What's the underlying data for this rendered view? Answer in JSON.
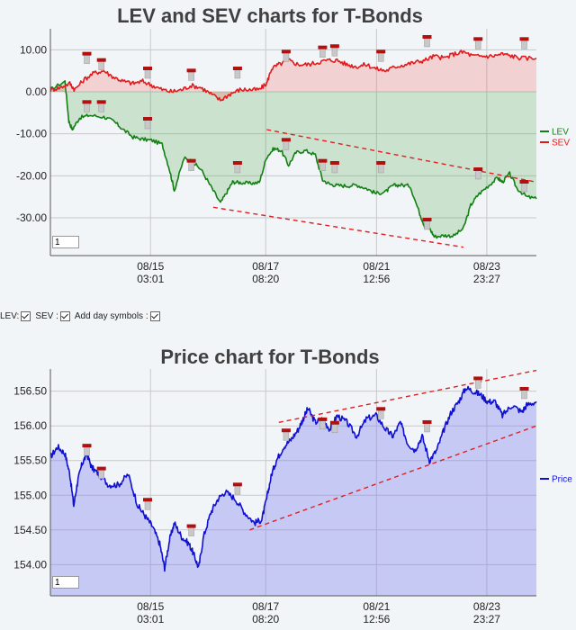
{
  "charts": {
    "lev": {
      "title": "LEV and SEV charts for T-Bonds",
      "legend": [
        {
          "name": "LEV",
          "color": "#138013"
        },
        {
          "name": "SEV",
          "color": "#e31a1c"
        }
      ],
      "zoom_value": "1"
    },
    "price": {
      "title": "Price chart for T-Bonds",
      "legend": [
        {
          "name": "Price",
          "color": "#1010d0"
        }
      ],
      "zoom_value": "1"
    }
  },
  "controls": {
    "lev_label": "LEV:",
    "sev_label": "SEV :",
    "day_label": "Add day symbols :"
  },
  "chart_data": [
    {
      "type": "line",
      "title": "LEV and SEV charts for T-Bonds",
      "x_range": [
        0,
        100
      ],
      "x_ticks": [
        {
          "pos": 20.6,
          "date": "08/15",
          "time": "03:01"
        },
        {
          "pos": 44.3,
          "date": "08/17",
          "time": "08:20"
        },
        {
          "pos": 67.1,
          "date": "08/21",
          "time": "12:56"
        },
        {
          "pos": 89.8,
          "date": "08/23",
          "time": "23:27"
        }
      ],
      "y_ticks": [
        10,
        0,
        -10,
        -20,
        -30
      ],
      "y_tick_labels": [
        "10.00",
        "0.00",
        "-10.00",
        "-20.00",
        "-30.00"
      ],
      "ylim": [
        -39,
        15
      ],
      "grid": true,
      "legend_position": "right",
      "series": [
        {
          "name": "LEV",
          "color": "#138013",
          "x": [
            0,
            3,
            3.8,
            4.5,
            6,
            8,
            11,
            13,
            15,
            17,
            19,
            21,
            23,
            24.5,
            25.5,
            27.5,
            29,
            31,
            33,
            35,
            36.5,
            37.5,
            39,
            41,
            43,
            44.5,
            46,
            47.5,
            49,
            50.5,
            52.5,
            54.5,
            56,
            57.5,
            59,
            61,
            63,
            65,
            67,
            69,
            70.5,
            72,
            74,
            76,
            77,
            78,
            79,
            81,
            83,
            85,
            86.5,
            88,
            90,
            92,
            93,
            94.5,
            96,
            98,
            100
          ],
          "y": [
            0.5,
            2.5,
            -7,
            -9,
            -6.2,
            -5.6,
            -6,
            -7,
            -9,
            -10.8,
            -11.3,
            -11.6,
            -12.5,
            -18.5,
            -23.5,
            -15.8,
            -16.5,
            -18.5,
            -22.5,
            -26.5,
            -23.5,
            -21.5,
            -21.6,
            -21.8,
            -21.6,
            -15.5,
            -13.5,
            -14,
            -17.5,
            -14.5,
            -14,
            -15,
            -21,
            -22,
            -22.3,
            -22.4,
            -22.2,
            -23,
            -24.2,
            -23.8,
            -22.3,
            -22.2,
            -22.4,
            -29,
            -32,
            -32.5,
            -34.5,
            -34.2,
            -34.3,
            -32.5,
            -27,
            -24.5,
            -22.5,
            -20.5,
            -21.5,
            -19.5,
            -23,
            -25,
            -25.5
          ]
        },
        {
          "name": "SEV",
          "color": "#e31a1c",
          "x": [
            0,
            2,
            4,
            5,
            7,
            9,
            11,
            13,
            15,
            17,
            19,
            21,
            23,
            25,
            27,
            29,
            31,
            33,
            35,
            37,
            39,
            41,
            43,
            44.5,
            45.5,
            47,
            49,
            51,
            53,
            55,
            57,
            59,
            61,
            63,
            65,
            67,
            69,
            71,
            73,
            75,
            77,
            79,
            81,
            83,
            85,
            87,
            89,
            91,
            93,
            95,
            97,
            100
          ],
          "y": [
            0.5,
            1,
            2,
            0.5,
            3,
            4.5,
            5,
            3.5,
            2.5,
            2,
            2.5,
            1.5,
            0.5,
            0,
            0.5,
            1.5,
            1,
            -0.5,
            -2,
            -0.5,
            0.5,
            0.5,
            0.5,
            2,
            5.5,
            6.5,
            7.5,
            6.5,
            6.5,
            7,
            7.5,
            7.5,
            6.5,
            6,
            6.5,
            5.5,
            5,
            6,
            6.5,
            7,
            7.5,
            8.5,
            8,
            9,
            9.5,
            8.5,
            8.5,
            8.5,
            9,
            8.5,
            8,
            8
          ]
        }
      ],
      "trend_lines": [
        {
          "x1": 44.5,
          "y1": -9,
          "x2": 100,
          "y2": -21.5
        },
        {
          "x1": 33.5,
          "y1": -27.5,
          "x2": 85,
          "y2": -37
        }
      ],
      "day_markers": [
        {
          "x": 7.5,
          "y": 8,
          "series": "SEV"
        },
        {
          "x": 10.5,
          "y": 6.5,
          "series": "SEV"
        },
        {
          "x": 20,
          "y": 4.5,
          "series": "SEV"
        },
        {
          "x": 29,
          "y": 4,
          "series": "SEV"
        },
        {
          "x": 38.5,
          "y": 4.5,
          "series": "SEV"
        },
        {
          "x": 48.5,
          "y": 8.5,
          "series": "SEV"
        },
        {
          "x": 56,
          "y": 9.5,
          "series": "SEV"
        },
        {
          "x": 58.5,
          "y": 9.8,
          "series": "SEV"
        },
        {
          "x": 68,
          "y": 8.5,
          "series": "SEV"
        },
        {
          "x": 77.5,
          "y": 12,
          "series": "SEV"
        },
        {
          "x": 88,
          "y": 11.5,
          "series": "SEV"
        },
        {
          "x": 97.5,
          "y": 11.5,
          "series": "SEV"
        },
        {
          "x": 7.5,
          "y": -3.5,
          "series": "LEV"
        },
        {
          "x": 10.5,
          "y": -3.5,
          "series": "LEV"
        },
        {
          "x": 20,
          "y": -7.5,
          "series": "LEV"
        },
        {
          "x": 29,
          "y": -17.5,
          "series": "LEV"
        },
        {
          "x": 38.5,
          "y": -18,
          "series": "LEV"
        },
        {
          "x": 48.5,
          "y": -12.5,
          "series": "LEV"
        },
        {
          "x": 56,
          "y": -17.5,
          "series": "LEV"
        },
        {
          "x": 58.5,
          "y": -18,
          "series": "LEV"
        },
        {
          "x": 68,
          "y": -18,
          "series": "LEV"
        },
        {
          "x": 77.5,
          "y": -31.5,
          "series": "LEV"
        },
        {
          "x": 88,
          "y": -19.5,
          "series": "LEV"
        },
        {
          "x": 97.5,
          "y": -22.5,
          "series": "LEV"
        }
      ]
    },
    {
      "type": "area",
      "title": "Price chart for T-Bonds",
      "x_range": [
        0,
        100
      ],
      "x_ticks": [
        {
          "pos": 20.6,
          "date": "08/15",
          "time": "03:01"
        },
        {
          "pos": 44.3,
          "date": "08/17",
          "time": "08:20"
        },
        {
          "pos": 67.1,
          "date": "08/21",
          "time": "12:56"
        },
        {
          "pos": 89.8,
          "date": "08/23",
          "time": "23:27"
        }
      ],
      "y_ticks": [
        156.5,
        156,
        155.5,
        155,
        154.5,
        154
      ],
      "y_tick_labels": [
        "156.50",
        "156.00",
        "155.50",
        "155.00",
        "154.50",
        "154.00"
      ],
      "ylim": [
        153.55,
        156.82
      ],
      "grid": true,
      "legend_position": "right",
      "series": [
        {
          "name": "Price",
          "color": "#1010d0",
          "x": [
            0,
            1.5,
            3,
            4,
            4.8,
            5.6,
            6.5,
            7.5,
            8.5,
            10,
            12,
            14,
            16,
            18,
            19.5,
            21,
            22.5,
            23.5,
            24.5,
            25.5,
            27,
            28.5,
            29.5,
            30.5,
            31.5,
            33,
            34.5,
            36,
            38,
            40,
            42,
            43.5,
            44.5,
            45.5,
            46.5,
            48,
            49.5,
            51,
            52,
            53,
            54.5,
            56,
            57.5,
            59,
            61,
            63,
            65,
            67,
            69,
            70.5,
            72,
            73.5,
            75,
            76.5,
            78,
            79.5,
            81,
            82.5,
            84,
            85.5,
            87,
            88.5,
            90,
            91.5,
            93,
            95,
            97,
            98,
            100
          ],
          "y": [
            155.55,
            155.7,
            155.6,
            155.3,
            154.85,
            155.2,
            155.45,
            155.6,
            155.4,
            155.3,
            155.15,
            155.15,
            155.3,
            154.85,
            154.7,
            154.55,
            154.3,
            153.95,
            154.35,
            154.6,
            154.4,
            154.3,
            154.15,
            153.95,
            154.4,
            154.75,
            154.95,
            155.05,
            154.95,
            154.75,
            154.6,
            154.65,
            154.95,
            155.3,
            155.5,
            155.7,
            155.8,
            155.95,
            156.1,
            156.25,
            156.05,
            156.1,
            155.95,
            156.15,
            156.05,
            155.85,
            156.1,
            156.15,
            155.95,
            155.85,
            156.05,
            155.75,
            155.65,
            155.85,
            155.5,
            155.65,
            155.95,
            156.2,
            156.35,
            156.55,
            156.5,
            156.45,
            156.35,
            156.35,
            156.15,
            156.3,
            156.2,
            156.3,
            156.35
          ]
        }
      ],
      "trend_lines": [
        {
          "x1": 47,
          "y1": 156.05,
          "x2": 100,
          "y2": 156.8
        },
        {
          "x1": 41,
          "y1": 154.5,
          "x2": 100,
          "y2": 156
        }
      ],
      "day_markers": [
        {
          "x": 7.5,
          "y": 155.65
        },
        {
          "x": 10.5,
          "y": 155.32
        },
        {
          "x": 20,
          "y": 154.87
        },
        {
          "x": 29,
          "y": 154.49
        },
        {
          "x": 38.5,
          "y": 155.09
        },
        {
          "x": 48.5,
          "y": 155.87
        },
        {
          "x": 56,
          "y": 156.03
        },
        {
          "x": 58.5,
          "y": 155.98
        },
        {
          "x": 68,
          "y": 156.18
        },
        {
          "x": 77.5,
          "y": 155.99
        },
        {
          "x": 88,
          "y": 156.62
        },
        {
          "x": 97.5,
          "y": 156.47
        }
      ]
    }
  ]
}
